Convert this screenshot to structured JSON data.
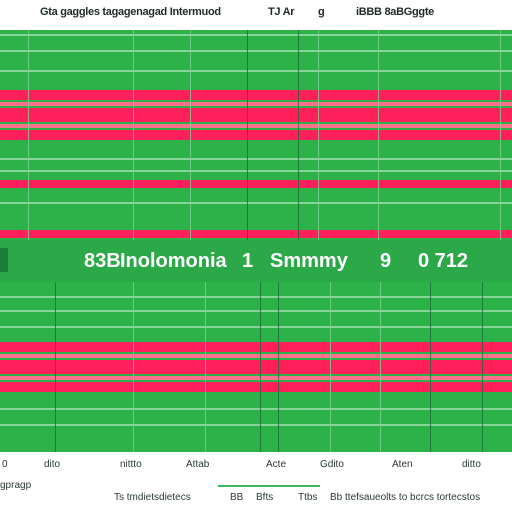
{
  "header": {
    "title": "Gta gaggles tagagenagad Intermuod",
    "code": "TJ Ar",
    "mark": "g",
    "right": "iBBB 8aBGggte"
  },
  "summary": {
    "code": "83B",
    "title": "Inolomonia",
    "index": "1",
    "label": "Smmmy",
    "count": "9",
    "value": "0 712"
  },
  "footer": {
    "axis_labels": [
      "0",
      "dito",
      "nittto",
      "Attab",
      "Acte",
      "Gdito",
      "Aten",
      "ditto"
    ],
    "left_note": "gpragp",
    "bottom_items": [
      "Ts tmdietsdietecs",
      "BB",
      "Bfts",
      "Ttbs",
      "Bb ttefsaueolts to bcrcs tortecstos"
    ]
  },
  "colors": {
    "grid_green": "#2db24a",
    "band_red": "#ff1f5a",
    "band_pink": "#ff6f8e",
    "bar_green": "#2ba848"
  }
}
